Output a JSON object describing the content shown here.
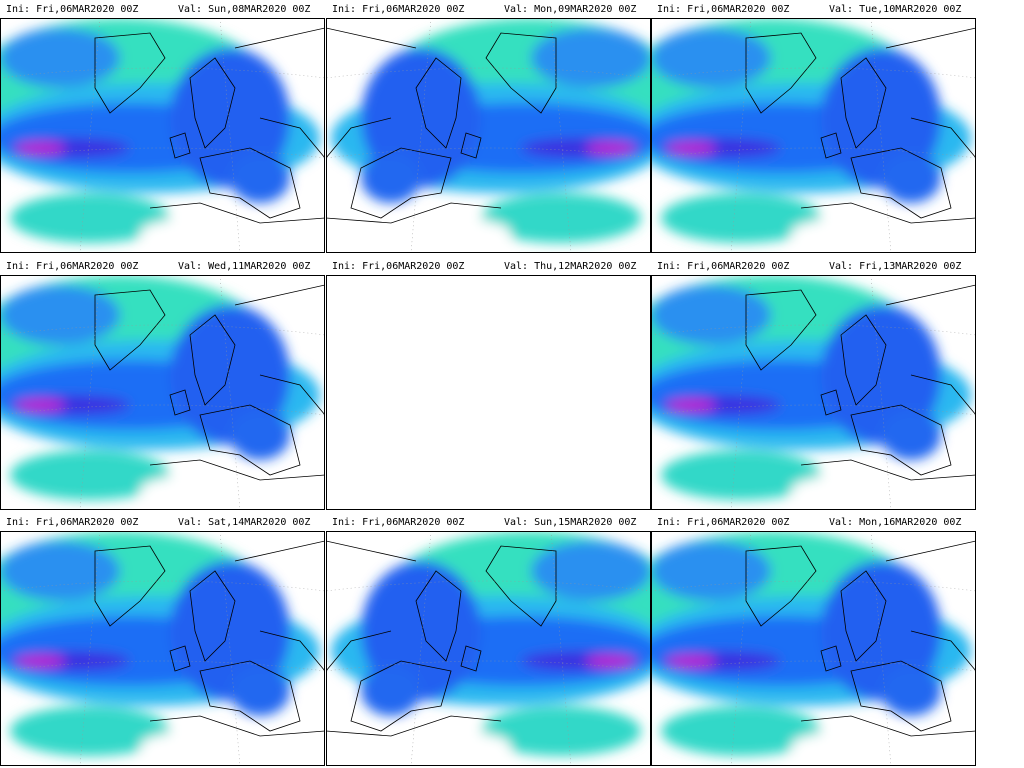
{
  "panels": [
    {
      "ini": "Ini: Fri,06MAR2020 00Z",
      "val": "Val: Sun,08MAR2020 00Z"
    },
    {
      "ini": "Ini: Fri,06MAR2020 00Z",
      "val": "Val: Mon,09MAR2020 00Z"
    },
    {
      "ini": "Ini: Fri,06MAR2020 00Z",
      "val": "Val: Tue,10MAR2020 00Z"
    },
    {
      "ini": "Ini: Fri,06MAR2020 00Z",
      "val": "Val: Wed,11MAR2020 00Z"
    },
    {
      "ini": "Ini: Fri,06MAR2020 00Z",
      "val": "Val: Thu,12MAR2020 00Z"
    },
    {
      "ini": "Ini: Fri,06MAR2020 00Z",
      "val": "Val: Fri,13MAR2020 00Z"
    },
    {
      "ini": "Ini: Fri,06MAR2020 00Z",
      "val": "Val: Sat,14MAR2020 00Z"
    },
    {
      "ini": "Ini: Fri,06MAR2020 00Z",
      "val": "Val: Sun,15MAR2020 00Z"
    },
    {
      "ini": "Ini: Fri,06MAR2020 00Z",
      "val": "Val: Mon,16MAR2020 00Z"
    }
  ]
}
